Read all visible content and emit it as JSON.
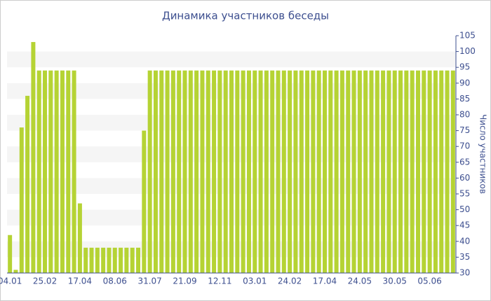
{
  "chart_data": {
    "type": "bar",
    "title": "Динамика участников беседы",
    "y_label": "Число участников",
    "categories": [
      "04.01",
      null,
      null,
      null,
      null,
      null,
      "25.02",
      null,
      null,
      null,
      null,
      null,
      "17.04",
      null,
      null,
      null,
      null,
      null,
      "08.06",
      null,
      null,
      null,
      null,
      null,
      "31.07",
      null,
      null,
      null,
      null,
      null,
      "21.09",
      null,
      null,
      null,
      null,
      null,
      "12.11",
      null,
      null,
      null,
      null,
      null,
      "03.01",
      null,
      null,
      null,
      null,
      null,
      "24.02",
      null,
      null,
      null,
      null,
      null,
      "17.04",
      null,
      null,
      null,
      null,
      null,
      "24.05",
      null,
      null,
      null,
      null,
      null,
      "30.05",
      null,
      null,
      null,
      null,
      null,
      "05.06",
      null,
      null,
      null,
      null
    ],
    "values": [
      42,
      31,
      76,
      86,
      103,
      94,
      94,
      94,
      94,
      94,
      94,
      94,
      52,
      38,
      38,
      38,
      38,
      38,
      38,
      38,
      38,
      38,
      38,
      75,
      94,
      94,
      94,
      94,
      94,
      94,
      94,
      94,
      94,
      94,
      94,
      94,
      94,
      94,
      94,
      94,
      94,
      94,
      94,
      94,
      94,
      94,
      94,
      94,
      94,
      94,
      94,
      94,
      94,
      94,
      94,
      94,
      94,
      94,
      94,
      94,
      94,
      94,
      94,
      94,
      94,
      94,
      94,
      94,
      94,
      94,
      94,
      94,
      94,
      94,
      94,
      94,
      94
    ],
    "color": "#b5d334",
    "ylim": [
      30,
      105
    ],
    "yticks": [
      30,
      35,
      40,
      45,
      50,
      55,
      60,
      65,
      70,
      75,
      80,
      85,
      90,
      95,
      100,
      105
    ],
    "grid": true
  }
}
